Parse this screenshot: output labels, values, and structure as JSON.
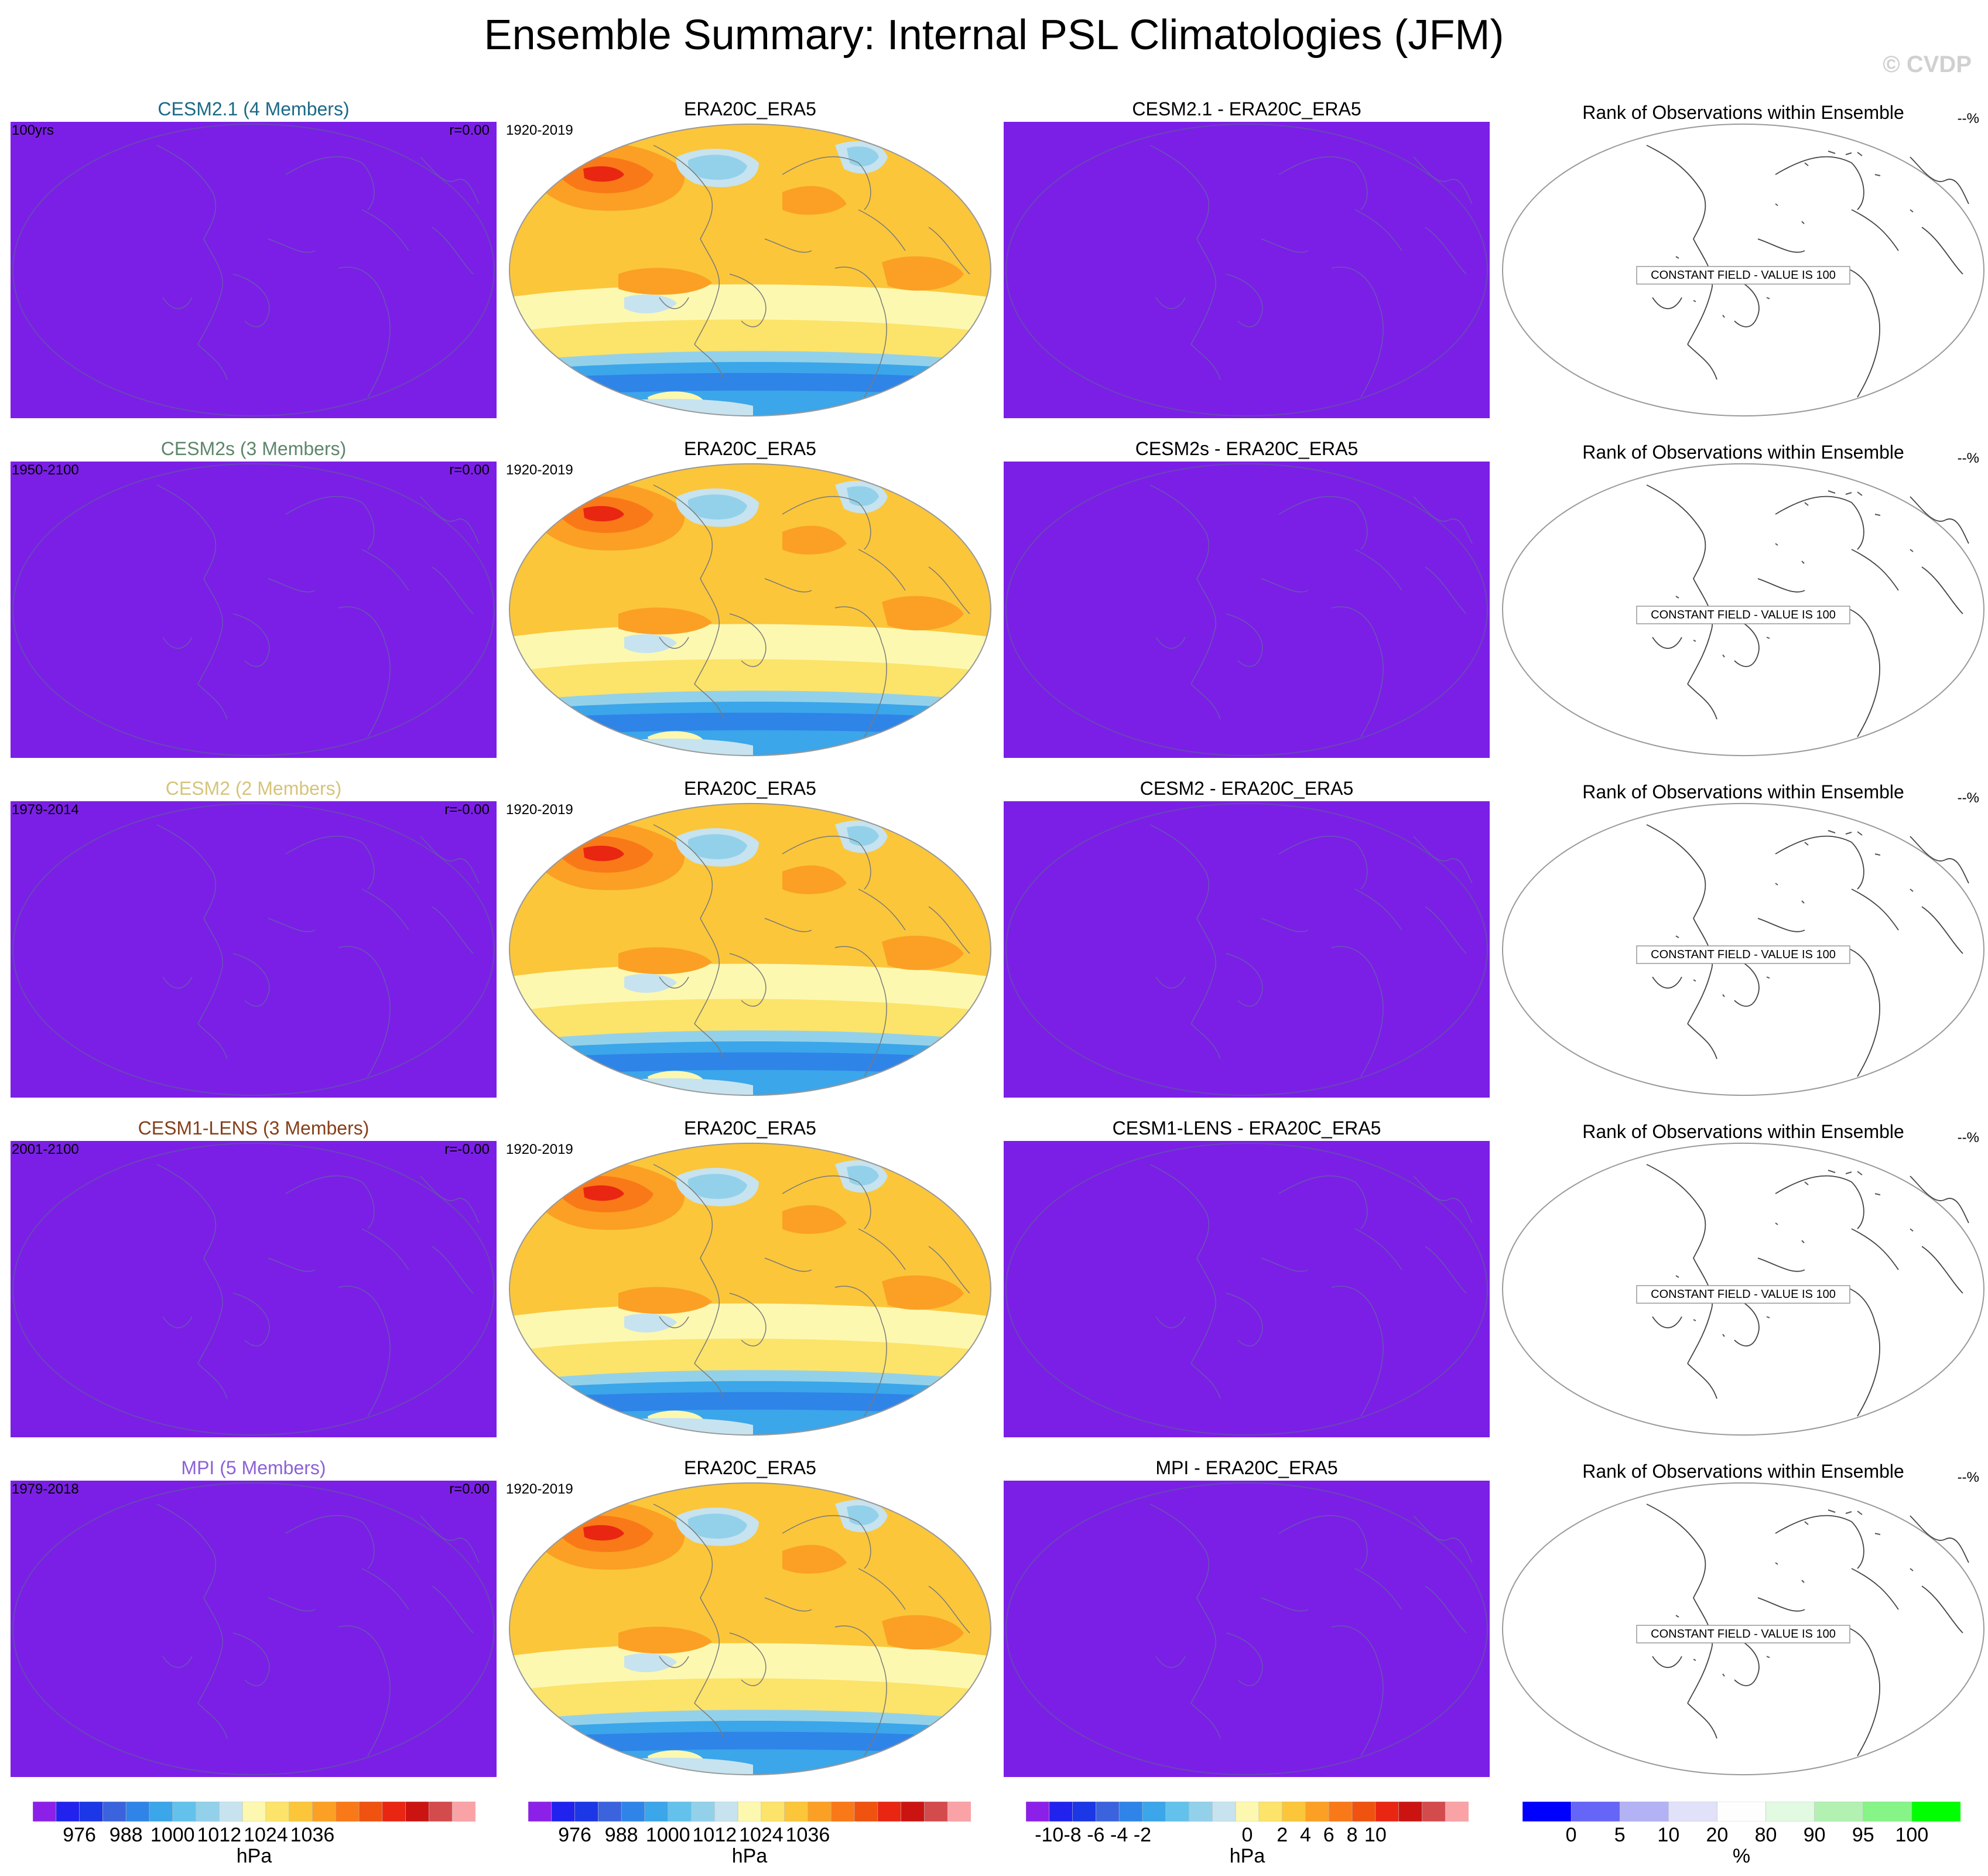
{
  "figure": {
    "title": "Ensemble Summary: Internal PSL Climatologies (JFM)",
    "watermark": "© CVDP"
  },
  "colors": {
    "model_fill": "#7b1fe6",
    "pressure_scale": [
      "#8c20e8",
      "#2222ee",
      "#1b37e6",
      "#3c63de",
      "#2f84e8",
      "#3ba6ea",
      "#63c2ec",
      "#93d1ea",
      "#c6e3ef",
      "#fdf8b0",
      "#fce36a",
      "#fbc63a",
      "#fba024",
      "#f97918",
      "#f0520f",
      "#e92612",
      "#cb1411",
      "#d44b4d",
      "#faa3a6"
    ],
    "diff_scale": [
      "#8c20e8",
      "#2222ee",
      "#1b37e6",
      "#3c63de",
      "#2f84e8",
      "#3ba6ea",
      "#63c2ec",
      "#93d1ea",
      "#c6e3ef",
      "#fdf8b0",
      "#fce36a",
      "#fbc63a",
      "#fba024",
      "#f97918",
      "#f0520f",
      "#e92612",
      "#cb1411",
      "#d44b4d",
      "#faa3a6"
    ],
    "rank_scale": [
      "#0000ff",
      "#6565f8",
      "#b2b2f4",
      "#e1e1f9",
      "#fefefe",
      "#e2f9e2",
      "#b2f1b2",
      "#86f486",
      "#00ff00"
    ]
  },
  "rows": [
    {
      "model_title": "CESM2.1 (4 Members)",
      "model_color": "#1b6a87",
      "model_years": "100yrs",
      "model_r": "r=0.00",
      "obs_title": "ERA20C_ERA5",
      "obs_years": "1920-2019",
      "diff_title": "CESM2.1 - ERA20C_ERA5",
      "rank_title": "Rank of Observations within Ensemble",
      "rank_pct": "--%",
      "constant_label": "CONSTANT FIELD - VALUE IS 100"
    },
    {
      "model_title": "CESM2s (3 Members)",
      "model_color": "#5e866a",
      "model_years": "1950-2100",
      "model_r": "r=0.00",
      "obs_title": "ERA20C_ERA5",
      "obs_years": "1920-2019",
      "diff_title": "CESM2s - ERA20C_ERA5",
      "rank_title": "Rank of Observations within Ensemble",
      "rank_pct": "--%",
      "constant_label": "CONSTANT FIELD - VALUE IS 100"
    },
    {
      "model_title": "CESM2 (2 Members)",
      "model_color": "#d6c47a",
      "model_years": "1979-2014",
      "model_r": "r=-0.00",
      "obs_title": "ERA20C_ERA5",
      "obs_years": "1920-2019",
      "diff_title": "CESM2 - ERA20C_ERA5",
      "rank_title": "Rank of Observations within Ensemble",
      "rank_pct": "--%",
      "constant_label": "CONSTANT FIELD - VALUE IS 100"
    },
    {
      "model_title": "CESM1-LENS (3 Members)",
      "model_color": "#86401a",
      "model_years": "2001-2100",
      "model_r": "r=-0.00",
      "obs_title": "ERA20C_ERA5",
      "obs_years": "1920-2019",
      "diff_title": "CESM1-LENS - ERA20C_ERA5",
      "rank_title": "Rank of Observations within Ensemble",
      "rank_pct": "--%",
      "constant_label": "CONSTANT FIELD - VALUE IS 100"
    },
    {
      "model_title": "MPI (5 Members)",
      "model_color": "#8c62d6",
      "model_years": "1979-2018",
      "model_r": "r=0.00",
      "obs_title": "ERA20C_ERA5",
      "obs_years": "1920-2019",
      "diff_title": "MPI - ERA20C_ERA5",
      "rank_title": "Rank of Observations within Ensemble",
      "rank_pct": "--%",
      "constant_label": "CONSTANT FIELD - VALUE IS 100"
    }
  ],
  "colorbars": [
    {
      "unit": "hPa",
      "ticks": [
        "976",
        "988",
        "1000",
        "1012",
        "1024",
        "1036"
      ]
    },
    {
      "unit": "hPa",
      "ticks": [
        "976",
        "988",
        "1000",
        "1012",
        "1024",
        "1036"
      ]
    },
    {
      "unit": "hPa",
      "ticks": [
        "-10",
        "-8",
        "-6",
        "-4",
        "-2",
        "0",
        "2",
        "4",
        "6",
        "8",
        "10"
      ]
    },
    {
      "unit": "%",
      "ticks": [
        "0",
        "5",
        "10",
        "20",
        "80",
        "90",
        "95",
        "100"
      ]
    }
  ],
  "chart_data": [
    {
      "type": "heatmap",
      "panel_type": "model_climatology",
      "field": "PSL climatology JFM",
      "value_state": "uniform field shown with the lowest color",
      "colorbar_ticks": [
        976,
        988,
        1000,
        1012,
        1024,
        1036
      ],
      "unit": "hPa"
    },
    {
      "type": "heatmap",
      "panel_type": "observed_climatology",
      "title": "ERA20C_ERA5",
      "years": "1920-2019",
      "colorbar_ticks": [
        976,
        988,
        1000,
        1012,
        1024,
        1036
      ],
      "unit": "hPa",
      "features": [
        "Siberian high ~1036+ hPa",
        "Aleutian low ~1000 hPa",
        "Icelandic low ~1000 hPa",
        "subtropical highs ~1020 hPa",
        "Southern Ocean trough ~976-988 hPa"
      ]
    },
    {
      "type": "heatmap",
      "panel_type": "difference",
      "colorbar_ticks": [
        -10,
        -8,
        -6,
        -4,
        -2,
        0,
        2,
        4,
        6,
        8,
        10
      ],
      "unit": "hPa",
      "value_state": "uniform field shown with the lowest color"
    },
    {
      "type": "heatmap",
      "panel_type": "rank",
      "colorbar_ticks": [
        0,
        5,
        10,
        20,
        80,
        90,
        95,
        100
      ],
      "unit": "%",
      "constant_value": 100
    }
  ]
}
